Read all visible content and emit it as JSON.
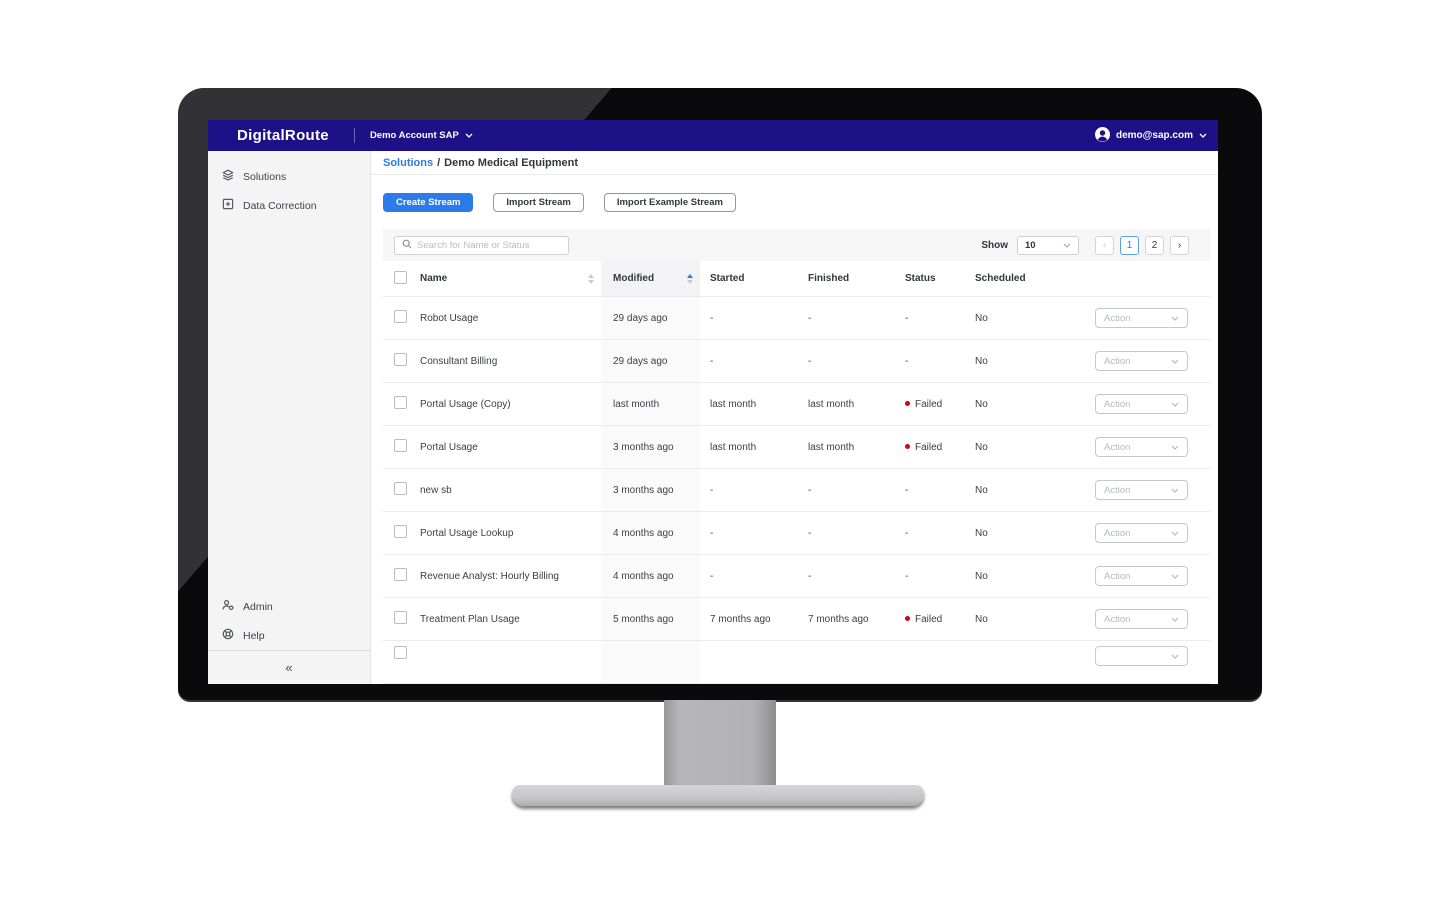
{
  "navbar": {
    "logo": "DigitalRoute",
    "account": "Demo Account SAP",
    "user_email": "demo@sap.com"
  },
  "sidebar": {
    "items": [
      {
        "label": "Solutions",
        "icon": "solutions-icon"
      },
      {
        "label": "Data Correction",
        "icon": "data-correction-icon"
      }
    ],
    "bottom_items": [
      {
        "label": "Admin",
        "icon": "admin-icon"
      },
      {
        "label": "Help",
        "icon": "help-icon"
      }
    ],
    "collapse_glyph": "«"
  },
  "breadcrumb": {
    "link": "Solutions",
    "separator": "/",
    "current": "Demo Medical Equipment"
  },
  "actions": {
    "create_stream": "Create Stream",
    "import_stream": "Import Stream",
    "import_example_stream": "Import Example Stream"
  },
  "table": {
    "search_placeholder": "Search for Name or Status",
    "show_label": "Show",
    "page_size": "10",
    "pagination": {
      "prev": "‹",
      "page_1": "1",
      "page_2": "2",
      "next": "›",
      "active_page": "1"
    },
    "columns": {
      "name": "Name",
      "modified": "Modified",
      "started": "Started",
      "finished": "Finished",
      "status": "Status",
      "scheduled": "Scheduled"
    },
    "sorted_column": "modified",
    "action_label": "Action",
    "rows": [
      {
        "name": "Robot Usage",
        "modified": "29 days ago",
        "started": "-",
        "finished": "-",
        "status": "-",
        "scheduled": "No"
      },
      {
        "name": "Consultant Billing",
        "modified": "29 days ago",
        "started": "-",
        "finished": "-",
        "status": "-",
        "scheduled": "No"
      },
      {
        "name": "Portal Usage (Copy)",
        "modified": "last month",
        "started": "last month",
        "finished": "last month",
        "status": "Failed",
        "scheduled": "No"
      },
      {
        "name": "Portal Usage",
        "modified": "3 months ago",
        "started": "last month",
        "finished": "last month",
        "status": "Failed",
        "scheduled": "No"
      },
      {
        "name": "new sb",
        "modified": "3 months ago",
        "started": "-",
        "finished": "-",
        "status": "-",
        "scheduled": "No"
      },
      {
        "name": "Portal Usage Lookup",
        "modified": "4 months ago",
        "started": "-",
        "finished": "-",
        "status": "-",
        "scheduled": "No"
      },
      {
        "name": "Revenue Analyst: Hourly Billing",
        "modified": "4 months ago",
        "started": "-",
        "finished": "-",
        "status": "-",
        "scheduled": "No"
      },
      {
        "name": "Treatment Plan Usage",
        "modified": "5 months ago",
        "started": "7 months ago",
        "finished": "7 months ago",
        "status": "Failed",
        "scheduled": "No"
      }
    ],
    "has_partial_row": true
  },
  "theme": {
    "navbar_bg": "#1e1187",
    "accent_blue": "#2b7cea",
    "failed_red": "#d0021b"
  }
}
